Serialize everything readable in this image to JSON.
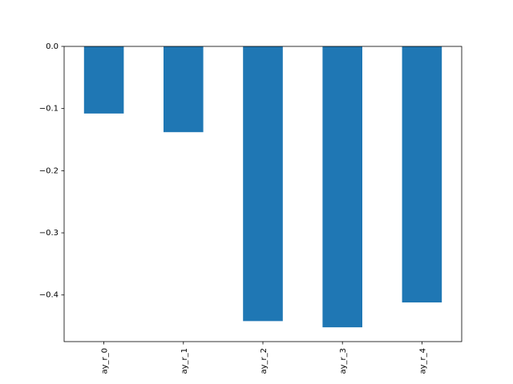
{
  "chart_data": {
    "type": "bar",
    "title": "",
    "xlabel": "",
    "ylabel": "",
    "categories": [
      "ay_r_0",
      "ay_r_1",
      "ay_r_2",
      "ay_r_3",
      "ay_r_4"
    ],
    "values": [
      -0.108,
      -0.138,
      -0.442,
      -0.452,
      -0.412
    ],
    "ylim": [
      -0.475,
      0.0
    ],
    "yticks": [
      0.0,
      -0.1,
      -0.2,
      -0.3,
      -0.4
    ],
    "ytick_labels": [
      "0.0",
      "−0.1",
      "−0.2",
      "−0.3",
      "−0.4"
    ],
    "bar_color": "#1f77b4",
    "grid": false,
    "legend": "none"
  }
}
